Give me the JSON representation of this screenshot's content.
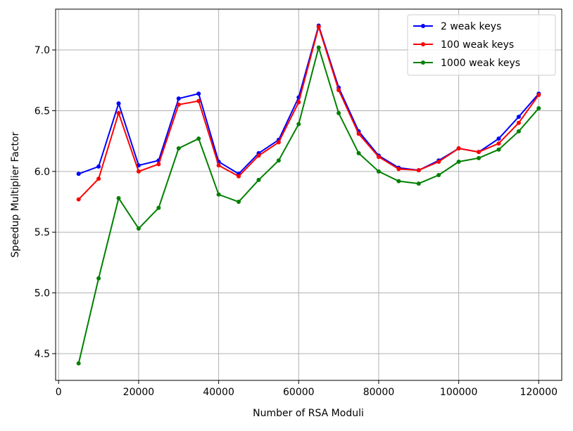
{
  "chart_data": {
    "type": "line",
    "xlabel": "Number of RSA Moduli",
    "ylabel": "Speedup Multiplier Factor",
    "x": [
      5000,
      10000,
      15000,
      20000,
      25000,
      30000,
      35000,
      40000,
      45000,
      50000,
      55000,
      60000,
      65000,
      70000,
      75000,
      80000,
      85000,
      90000,
      95000,
      100000,
      105000,
      110000,
      115000,
      120000
    ],
    "series": [
      {
        "name": "2 weak keys",
        "color": "#0000ff",
        "values": [
          5.98,
          6.04,
          6.56,
          6.05,
          6.09,
          6.6,
          6.64,
          6.08,
          5.98,
          6.15,
          6.26,
          6.61,
          7.2,
          6.69,
          6.33,
          6.13,
          6.03,
          6.01,
          6.09,
          6.19,
          6.16,
          6.27,
          6.45,
          6.64
        ]
      },
      {
        "name": "100 weak keys",
        "color": "#ff0000",
        "values": [
          5.77,
          5.94,
          6.48,
          6.0,
          6.06,
          6.55,
          6.58,
          6.05,
          5.96,
          6.13,
          6.24,
          6.57,
          7.19,
          6.67,
          6.31,
          6.12,
          6.02,
          6.01,
          6.08,
          6.19,
          6.16,
          6.23,
          6.4,
          6.63
        ]
      },
      {
        "name": "1000 weak keys",
        "color": "#008000",
        "values": [
          4.42,
          5.12,
          5.78,
          5.53,
          5.7,
          6.19,
          6.27,
          5.81,
          5.75,
          5.93,
          6.09,
          6.39,
          7.02,
          6.48,
          6.15,
          6.0,
          5.92,
          5.9,
          5.97,
          6.08,
          6.11,
          6.18,
          6.33,
          6.52
        ]
      }
    ],
    "xlim": [
      -750,
      125750
    ],
    "ylim": [
      4.28,
      7.336
    ],
    "xticks": [
      0,
      20000,
      40000,
      60000,
      80000,
      100000,
      120000
    ],
    "yticks": [
      4.5,
      {
        "value": 5,
        "label": "5.0"
      },
      5.5,
      {
        "value": 6,
        "label": "6.0"
      },
      6.5,
      {
        "value": 7,
        "label": "7.0"
      }
    ],
    "grid": true,
    "legend": "upper-right"
  }
}
